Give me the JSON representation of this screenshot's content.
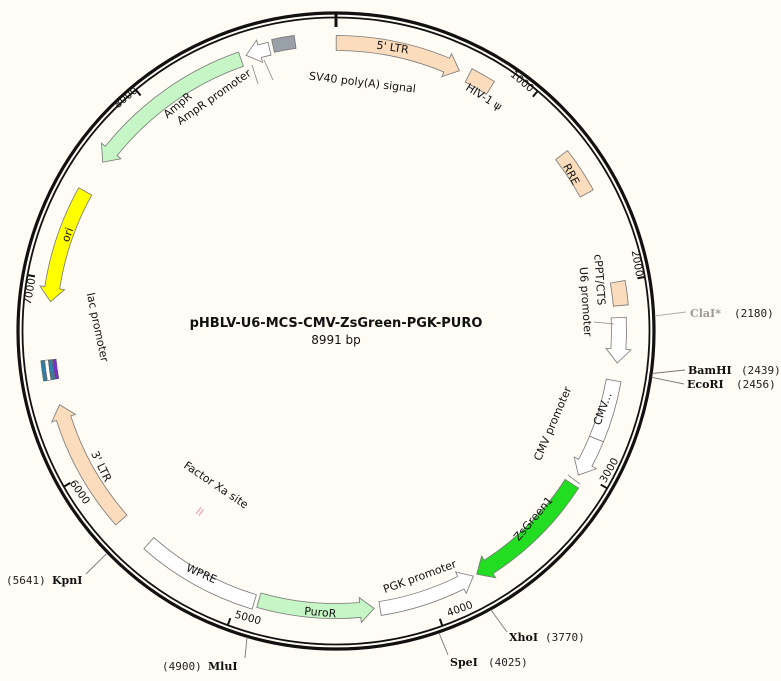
{
  "plasmid": {
    "name": "pHBLV-U6-MCS-CMV-ZsGreen-PGK-PURO",
    "length_label": "8991 bp",
    "length": 8991
  },
  "ticks": [
    "1000",
    "2000",
    "3000",
    "4000",
    "5000",
    "6000",
    "7000",
    "8000"
  ],
  "features": [
    {
      "label": "5' LTR",
      "start": 1,
      "end": 634,
      "direction": "forward",
      "color": "#fbdcbd"
    },
    {
      "label": "HIV-1 ψ",
      "start": 685,
      "end": 810,
      "direction": "none",
      "color": "#fbdcbd"
    },
    {
      "label": "RRE",
      "start": 1300,
      "end": 1530,
      "direction": "none",
      "color": "#fbdcbd"
    },
    {
      "label": "cPPT/CTS",
      "start": 2000,
      "end": 2120,
      "direction": "none",
      "color": "#fbdcbd"
    },
    {
      "label": "U6 promoter",
      "start": 2180,
      "end": 2410,
      "direction": "forward",
      "color": "#ffffff"
    },
    {
      "label": "CMV...",
      "start": 2500,
      "end": 2810,
      "direction": "none",
      "color": "#ffffff"
    },
    {
      "label": "CMV promoter",
      "start": 2810,
      "end": 3015,
      "direction": "forward",
      "color": "#ffffff"
    },
    {
      "label": "ZsGreen1",
      "start": 3070,
      "end": 3745,
      "direction": "forward",
      "color": "#22dd22"
    },
    {
      "label": "PGK promoter",
      "start": 3765,
      "end": 4270,
      "direction": "reverse",
      "color": "#ffffff"
    },
    {
      "label": "PuroR",
      "start": 4300,
      "end": 4895,
      "direction": "reverse",
      "color": "#c6f5c6"
    },
    {
      "label": "WPRE",
      "start": 4915,
      "end": 5530,
      "direction": "none",
      "color": "#ffffff"
    },
    {
      "label": "3' LTR",
      "start": 5710,
      "end": 6370,
      "direction": "forward",
      "color": "#fbdcbd"
    },
    {
      "label": "lac promoter",
      "start": 6500,
      "end": 6600,
      "direction": "none",
      "color": "#2f7fa8"
    },
    {
      "label": "ori",
      "start": 6890,
      "end": 7470,
      "direction": "reverse",
      "color": "#ffff00"
    },
    {
      "label": "AmpR",
      "start": 7640,
      "end": 8510,
      "direction": "reverse",
      "color": "#c6f5c6"
    },
    {
      "label": "AmpR promoter",
      "start": 8540,
      "end": 8660,
      "direction": "reverse",
      "color": "#ffffff"
    },
    {
      "label": "SV40 poly(A) signal",
      "start": 8680,
      "end": 8790,
      "direction": "none",
      "color": "#9aa0a8"
    },
    {
      "label": "Factor Xa site",
      "start": 5410,
      "end": 5430,
      "direction": "none",
      "color": "#e8a0b0"
    }
  ],
  "sites": [
    {
      "name": "ClaI*",
      "position": "(2180)",
      "pos": 2180,
      "muted": true
    },
    {
      "name": "BamHI",
      "position": "(2439)",
      "pos": 2439,
      "muted": false
    },
    {
      "name": "EcoRI",
      "position": "(2456)",
      "pos": 2456,
      "muted": false
    },
    {
      "name": "XhoI",
      "position": "(3770)",
      "pos": 3770,
      "muted": false
    },
    {
      "name": "SpeI",
      "position": "(4025)",
      "pos": 4025,
      "muted": false
    },
    {
      "name": "MluI",
      "position": "(4900)",
      "pos": 4900,
      "muted": false
    },
    {
      "name": "KpnI",
      "position": "(5641)",
      "pos": 5641,
      "muted": false
    }
  ],
  "colors": {
    "background": "#fefcf5",
    "backbone": "#111111",
    "muted_site": "#999999"
  }
}
